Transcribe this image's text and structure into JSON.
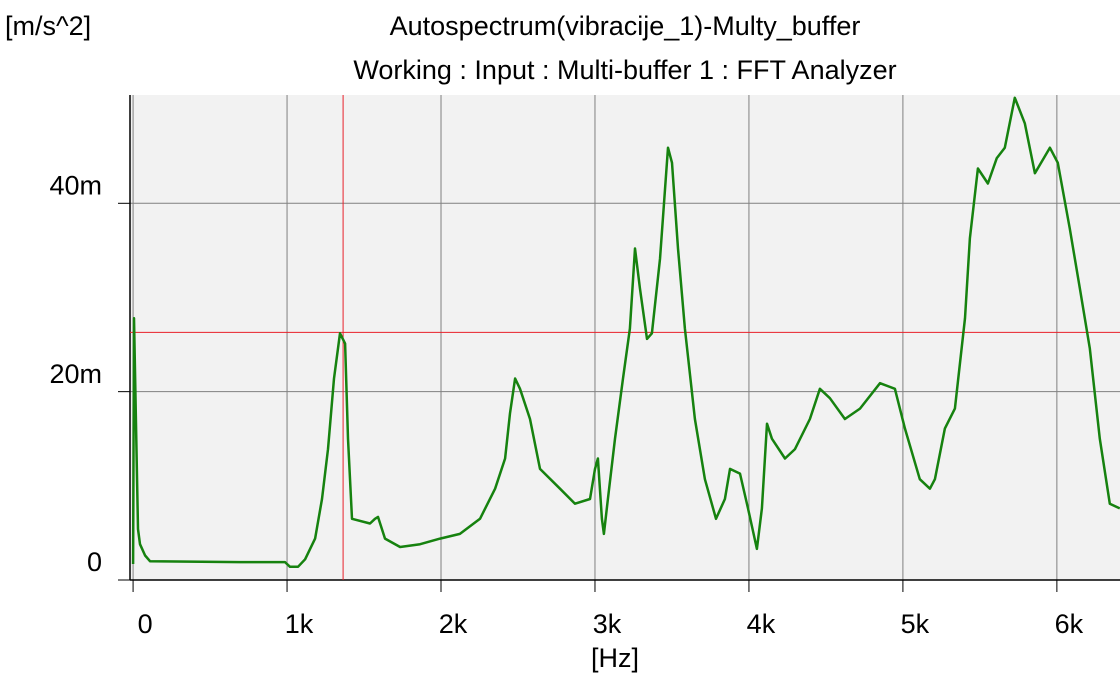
{
  "chart_data": {
    "type": "line",
    "title": "Autospectrum(vibracije_1)-Multy_buffer",
    "subtitle": "Working : Input : Multi-buffer 1 : FFT Analyzer",
    "y_label": "[m/s^2]",
    "x_label": "[Hz]",
    "xlim": [
      -20,
      6410
    ],
    "ylim": [
      0,
      0.0515
    ],
    "xticks": [
      0,
      {
        "value": 1000,
        "label": "1k"
      },
      {
        "value": 2000,
        "label": "2k"
      },
      {
        "value": 3000,
        "label": "3k"
      },
      {
        "value": 4000,
        "label": "4k"
      },
      {
        "value": 5000,
        "label": "5k"
      },
      {
        "value": 6000,
        "label": "6k"
      }
    ],
    "yticks": [
      0,
      {
        "value": 0.02,
        "label": "20m"
      },
      {
        "value": 0.04,
        "label": "40m"
      }
    ],
    "grid": true,
    "cursor": {
      "x": 1364,
      "y": 0.0263,
      "color": "#e8202a"
    },
    "series": [
      {
        "name": "vibracije_1",
        "color": "#16820f",
        "x": [
          0,
          6,
          32,
          45,
          78,
          110,
          695,
          987,
          1019,
          1071,
          1117,
          1182,
          1227,
          1266,
          1305,
          1344,
          1377,
          1396,
          1422,
          1539,
          1571,
          1591,
          1636,
          1734,
          1864,
          1994,
          2123,
          2253,
          2351,
          2416,
          2448,
          2481,
          2513,
          2578,
          2643,
          2773,
          2870,
          2968,
          3000,
          3019,
          3045,
          3058,
          3084,
          3130,
          3182,
          3227,
          3260,
          3292,
          3338,
          3370,
          3422,
          3474,
          3500,
          3539,
          3584,
          3649,
          3714,
          3786,
          3844,
          3877,
          3942,
          3994,
          4052,
          4084,
          4117,
          4149,
          4234,
          4299,
          4396,
          4461,
          4526,
          4623,
          4721,
          4851,
          4948,
          5013,
          5110,
          5175,
          5208,
          5273,
          5338,
          5403,
          5435,
          5487,
          5552,
          5610,
          5662,
          5727,
          5792,
          5857,
          5955,
          6006,
          6084,
          6149,
          6214,
          6279,
          6344,
          6409
        ],
        "values": [
          0.0017,
          0.0278,
          0.0054,
          0.0038,
          0.0026,
          0.002,
          0.0019,
          0.0019,
          0.0014,
          0.0014,
          0.0022,
          0.0044,
          0.0086,
          0.0139,
          0.0214,
          0.0262,
          0.0251,
          0.015,
          0.0065,
          0.006,
          0.0065,
          0.0067,
          0.0044,
          0.0035,
          0.0038,
          0.0044,
          0.0049,
          0.0065,
          0.0097,
          0.0129,
          0.0177,
          0.0214,
          0.0203,
          0.0171,
          0.0118,
          0.0097,
          0.0081,
          0.0086,
          0.0118,
          0.0129,
          0.0065,
          0.0049,
          0.0086,
          0.015,
          0.0214,
          0.0267,
          0.0352,
          0.031,
          0.0256,
          0.0262,
          0.0341,
          0.0459,
          0.0443,
          0.0352,
          0.0267,
          0.0171,
          0.0107,
          0.0065,
          0.0086,
          0.0118,
          0.0113,
          0.0076,
          0.0033,
          0.0076,
          0.0166,
          0.015,
          0.0129,
          0.0139,
          0.0171,
          0.0203,
          0.0193,
          0.0171,
          0.0182,
          0.0209,
          0.0203,
          0.0161,
          0.0107,
          0.0097,
          0.0107,
          0.0161,
          0.0182,
          0.0278,
          0.0363,
          0.0437,
          0.0421,
          0.0448,
          0.0459,
          0.0512,
          0.0485,
          0.0432,
          0.0459,
          0.0443,
          0.0373,
          0.031,
          0.0246,
          0.015,
          0.0081,
          0.0076
        ]
      }
    ]
  }
}
